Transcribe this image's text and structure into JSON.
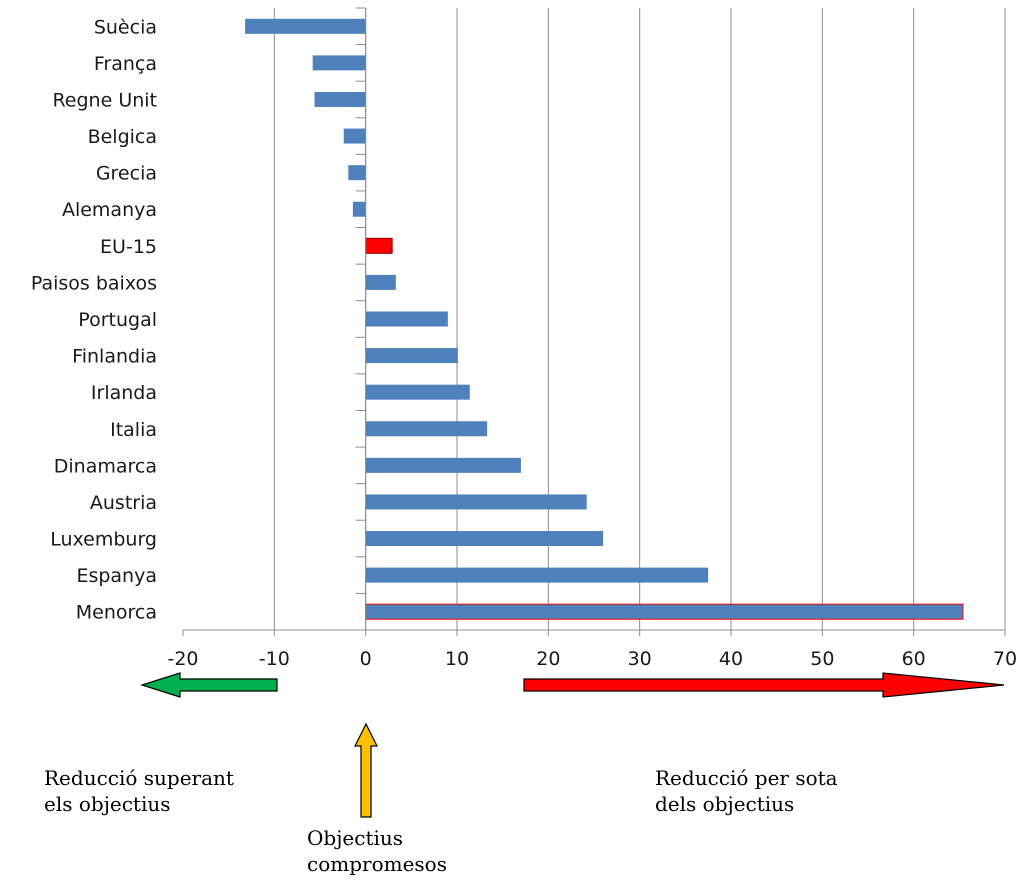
{
  "chart_data": {
    "type": "bar",
    "orientation": "horizontal",
    "categories": [
      "Suècia",
      "França",
      "Regne Unit",
      "Belgica",
      "Grecia",
      "Alemanya",
      "EU-15",
      "Paisos baixos",
      "Portugal",
      "Finlandia",
      "Irlanda",
      "Italia",
      "Dinamarca",
      "Austria",
      "Luxemburg",
      "Espanya",
      "Menorca"
    ],
    "values": [
      -13.2,
      -5.8,
      -5.6,
      -2.4,
      -1.9,
      -1.4,
      2.9,
      3.3,
      9.0,
      10.1,
      11.4,
      13.3,
      17.0,
      24.2,
      26.0,
      37.5,
      65.4
    ],
    "xlim": [
      -20,
      70
    ],
    "xticks": [
      -20,
      -10,
      0,
      10,
      20,
      30,
      40,
      50,
      60,
      70
    ],
    "grid": "vertical",
    "bar_color": "#4F81BD",
    "highlight": {
      "EU-15": "#FF0000",
      "Menorca": "#4F81BD"
    },
    "highlight_outline": {
      "Menorca": "#FF0000",
      "EU-15": "#8B0000"
    }
  },
  "annotations": {
    "left_arrow_color": "#00B050",
    "right_arrow_color": "#FF0000",
    "up_arrow_color": "#FFC000",
    "left_text": "Reducció superant\nels objectius",
    "center_text": "Objectius\ncompromesos",
    "right_text": "Reducció per sota\ndels objectius"
  }
}
